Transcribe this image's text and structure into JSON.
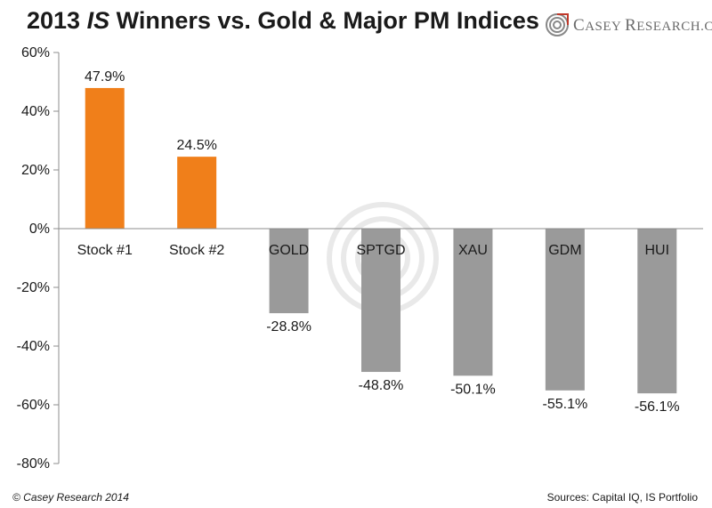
{
  "header": {
    "title_pre": "2013 ",
    "title_italic": "IS",
    "title_post": " Winners vs. Gold & Major PM Indices",
    "brand_first_cap": "C",
    "brand_first_rest": "ASEY",
    "brand_second_cap": "R",
    "brand_second_rest": "ESEARCH.COM",
    "brand_icon": "casey-spiral-logo"
  },
  "footer": {
    "copyright": "© Casey Research 2014",
    "sources": "Sources: Capital IQ, IS Portfolio"
  },
  "colors": {
    "positive": "#f07f1a",
    "negative": "#9a9a9a",
    "axis": "#8c8c8c"
  },
  "chart_data": {
    "type": "bar",
    "title": "2013 IS Winners vs. Gold & Major PM Indices",
    "xlabel": "",
    "ylabel": "",
    "ylim": [
      -80,
      60
    ],
    "yticks": [
      60,
      40,
      20,
      0,
      -20,
      -40,
      -60,
      -80
    ],
    "ytick_labels": [
      "60%",
      "40%",
      "20%",
      "0%",
      "-20%",
      "-40%",
      "-60%",
      "-80%"
    ],
    "grid": false,
    "legend": "none",
    "categories": [
      "Stock #1",
      "Stock #2",
      "GOLD",
      "SPTGD",
      "XAU",
      "GDM",
      "HUI"
    ],
    "values": [
      47.9,
      24.5,
      -28.8,
      -48.8,
      -50.1,
      -55.1,
      -56.1
    ],
    "data_labels": [
      "47.9%",
      "24.5%",
      "-28.8%",
      "-48.8%",
      "-50.1%",
      "-55.1%",
      "-56.1%"
    ]
  }
}
